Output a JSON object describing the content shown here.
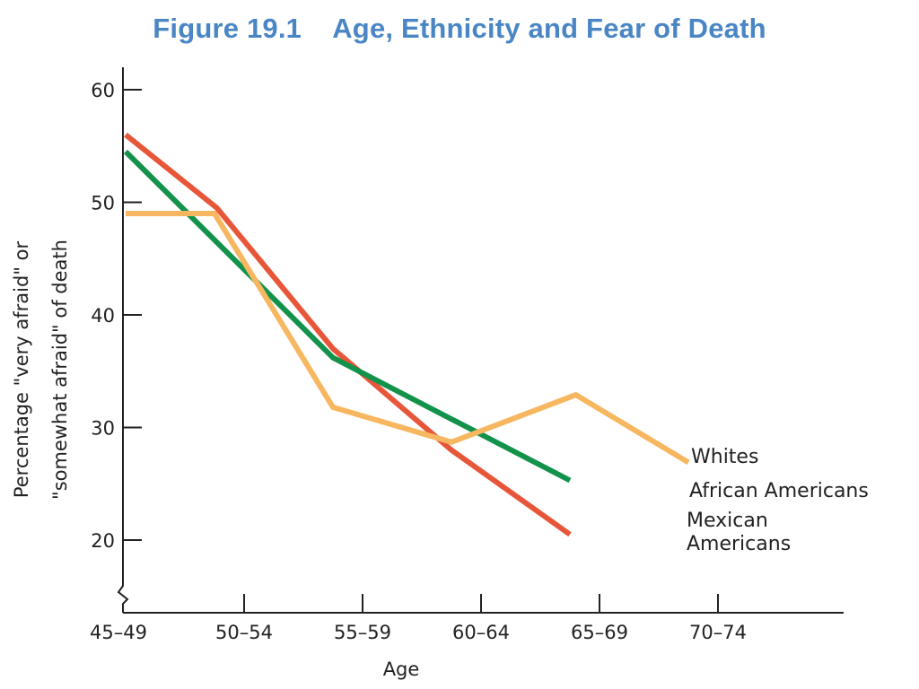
{
  "title": "Figure 19.1    Age, Ethnicity and Fear of Death",
  "chart_data": {
    "type": "line",
    "categories": [
      "45–49",
      "50–54",
      "55–59",
      "60–64",
      "65–69",
      "70–74"
    ],
    "x": [
      0,
      0.75,
      1,
      1.75,
      2,
      3,
      3.5,
      4,
      4.5
    ],
    "xlabel": "Age",
    "ylabel_line1": "Percentage \"very afraid\" or",
    "ylabel_line2": "\"somewhat afraid\" of death",
    "ylim": [
      15,
      62
    ],
    "yticks": [
      20,
      30,
      40,
      50,
      60
    ],
    "series": [
      {
        "name": "Mexican Americans",
        "label_lines": [
          "Mexican",
          "Americans"
        ],
        "color": "#e8563a",
        "points": [
          [
            0,
            56
          ],
          [
            0.77,
            49.5
          ],
          [
            1.75,
            37
          ],
          [
            2.75,
            28
          ],
          [
            3.75,
            20.5
          ]
        ]
      },
      {
        "name": "African Americans",
        "label_lines": [
          "African Americans"
        ],
        "color": "#12924a",
        "points": [
          [
            0,
            54.5
          ],
          [
            1.75,
            36.2
          ],
          [
            3.75,
            25.3
          ]
        ]
      },
      {
        "name": "Whites",
        "label_lines": [
          "Whites"
        ],
        "color": "#f7b660",
        "points": [
          [
            0,
            49
          ],
          [
            0.75,
            49
          ],
          [
            1.75,
            31.8
          ],
          [
            2.75,
            28.7
          ],
          [
            3.8,
            32.9
          ],
          [
            4.75,
            26.9
          ]
        ]
      }
    ],
    "grid": false,
    "legend": "inline at line ends"
  }
}
